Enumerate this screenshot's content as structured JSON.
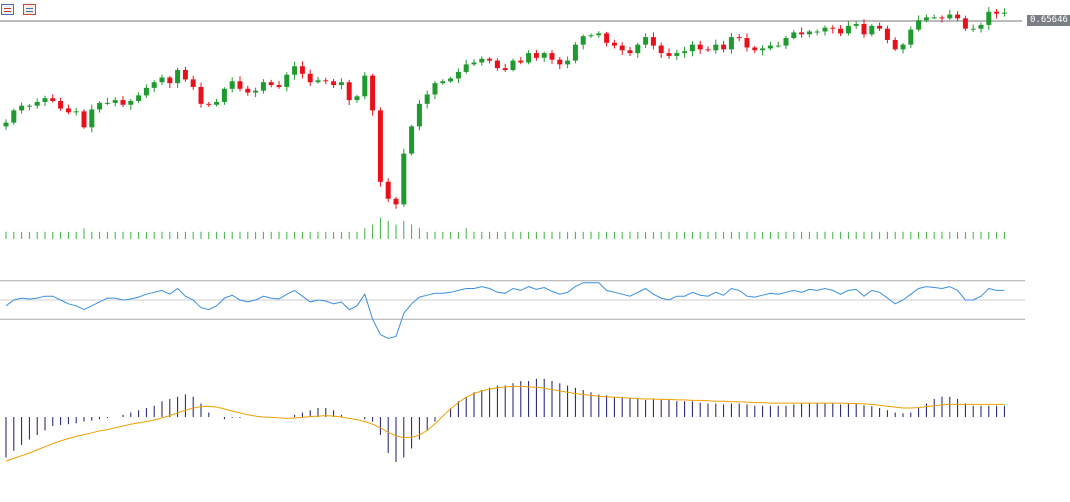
{
  "toolbar": {
    "icon_left": "properties-list-icon",
    "icon_right": "chart-type-icon"
  },
  "price_label": "0.65646",
  "colors": {
    "bull": "#1e9a2e",
    "bear": "#e8111b",
    "volume": "#3cb043",
    "rsi": "#3b8fe0",
    "macd_hist": "#1a1a6e",
    "signal": "#f0a000",
    "level_line": "#a9a9a9",
    "price_line": "#777777"
  },
  "chart_data": [
    {
      "type": "candlestick",
      "title": "",
      "last_price": 0.65646,
      "closes": [
        0.6448,
        0.6461,
        0.6466,
        0.6466,
        0.647,
        0.6474,
        0.6471,
        0.6463,
        0.6459,
        0.646,
        0.6443,
        0.6462,
        0.6469,
        0.6469,
        0.6472,
        0.6467,
        0.6471,
        0.6477,
        0.6485,
        0.6491,
        0.6496,
        0.649,
        0.6504,
        0.6494,
        0.6486,
        0.6468,
        0.6467,
        0.647,
        0.6484,
        0.6492,
        0.6484,
        0.648,
        0.6482,
        0.6491,
        0.6488,
        0.6486,
        0.6499,
        0.6508,
        0.65,
        0.6491,
        0.6493,
        0.6492,
        0.6488,
        0.6491,
        0.6472,
        0.6476,
        0.6498,
        0.6461,
        0.6385,
        0.6367,
        0.6361,
        0.6415,
        0.6444,
        0.6468,
        0.6478,
        0.649,
        0.6492,
        0.6495,
        0.6502,
        0.651,
        0.6512,
        0.6516,
        0.6514,
        0.6506,
        0.6504,
        0.6514,
        0.6512,
        0.6522,
        0.6517,
        0.6522,
        0.6515,
        0.651,
        0.6514,
        0.6531,
        0.654,
        0.6541,
        0.6543,
        0.6533,
        0.653,
        0.6525,
        0.6522,
        0.6531,
        0.6539,
        0.653,
        0.6522,
        0.6519,
        0.6522,
        0.6524,
        0.6531,
        0.6526,
        0.6525,
        0.6531,
        0.6526,
        0.6539,
        0.6538,
        0.6528,
        0.6525,
        0.6527,
        0.653,
        0.653,
        0.6538,
        0.6544,
        0.6542,
        0.6545,
        0.6545,
        0.6549,
        0.6548,
        0.6543,
        0.6551,
        0.6553,
        0.6542,
        0.6551,
        0.6548,
        0.6536,
        0.6526,
        0.6531,
        0.6547,
        0.6557,
        0.656,
        0.656,
        0.6559,
        0.6563,
        0.6559,
        0.6548,
        0.6548,
        0.6552,
        0.6566,
        0.6564,
        0.6565
      ],
      "volume": [
        2,
        2,
        2,
        2,
        2,
        2,
        2,
        2,
        2,
        2,
        3,
        2,
        2,
        2,
        2,
        2,
        2,
        2,
        2,
        2,
        2,
        2,
        2,
        2,
        2,
        2,
        2,
        2,
        2,
        2,
        2,
        2,
        2,
        2,
        2,
        2,
        2,
        2,
        2,
        2,
        2,
        2,
        2,
        2,
        2,
        2,
        3,
        4,
        6,
        5,
        4,
        5,
        4,
        3,
        2,
        2,
        2,
        2,
        2,
        3,
        2,
        2,
        2,
        2,
        2,
        2,
        2,
        2,
        2,
        2,
        2,
        2,
        2,
        2,
        2,
        2,
        2,
        2,
        2,
        2,
        2,
        2,
        2,
        2,
        2,
        2,
        2,
        2,
        2,
        2,
        2,
        2,
        2,
        2,
        2,
        2,
        2,
        2,
        2,
        2,
        2,
        2,
        2,
        2,
        2,
        2,
        2,
        2,
        2,
        2,
        2,
        2,
        2,
        2,
        2,
        2,
        2,
        2,
        2,
        2,
        2,
        2,
        2,
        2,
        2,
        2,
        2,
        2,
        2
      ]
    },
    {
      "type": "line",
      "series": [
        {
          "values": [
            44,
            50,
            52,
            51,
            52,
            54,
            54,
            50,
            46,
            44,
            40,
            44,
            48,
            52,
            52,
            50,
            51,
            53,
            56,
            58,
            60,
            56,
            62,
            54,
            50,
            42,
            40,
            44,
            52,
            55,
            50,
            48,
            50,
            54,
            52,
            51,
            56,
            60,
            54,
            48,
            50,
            49,
            46,
            48,
            40,
            44,
            56,
            30,
            14,
            10,
            12,
            36,
            46,
            53,
            55,
            57,
            57,
            58,
            60,
            62,
            62,
            64,
            62,
            58,
            57,
            62,
            60,
            64,
            61,
            63,
            59,
            56,
            58,
            64,
            68,
            68,
            68,
            60,
            58,
            56,
            54,
            58,
            62,
            56,
            52,
            50,
            54,
            54,
            58,
            55,
            54,
            58,
            55,
            62,
            60,
            54,
            53,
            55,
            57,
            56,
            58,
            60,
            58,
            61,
            60,
            62,
            60,
            56,
            60,
            61,
            54,
            60,
            58,
            52,
            46,
            50,
            56,
            62,
            64,
            63,
            62,
            64,
            60,
            50,
            50,
            54,
            62,
            60,
            60
          ]
        }
      ],
      "levels": [
        70,
        30
      ],
      "ylim": [
        0,
        100
      ]
    },
    {
      "type": "bar",
      "series": [
        {
          "values": [
            -0.0009,
            -0.00075,
            -0.00062,
            -0.0005,
            -0.0004,
            -0.0003,
            -0.0002,
            -0.00018,
            -0.00016,
            -0.00014,
            -0.0001,
            -8e-05,
            -5e-05,
            -2e-05,
            0.0,
            5e-05,
            0.0001,
            0.00015,
            0.0002,
            0.00025,
            0.00035,
            0.0004,
            0.00045,
            0.0005,
            0.00045,
            0.0003,
            0.0001,
            0.0,
            -5e-05,
            -2e-05,
            -2e-05,
            0.0,
            0.0,
            0.0,
            0.0,
            0.0,
            0.0,
            5e-05,
            0.0001,
            0.00015,
            0.0002,
            0.0002,
            0.00015,
            5e-05,
            0.0,
            0.0,
            -5e-05,
            -0.0001,
            -0.0004,
            -0.0008,
            -0.001,
            -0.0009,
            -0.0007,
            -0.0005,
            -0.0003,
            -0.0001,
            0.0,
            0.0002,
            0.00035,
            0.00045,
            0.00055,
            0.0006,
            0.00065,
            0.0007,
            0.0007,
            0.00075,
            0.0008,
            0.0008,
            0.00085,
            0.00085,
            0.0008,
            0.00075,
            0.0007,
            0.00065,
            0.0006,
            0.00055,
            0.0005,
            0.00048,
            0.00045,
            0.00045,
            0.00042,
            0.0004,
            0.00038,
            0.0004,
            0.0004,
            0.00038,
            0.00035,
            0.00035,
            0.00035,
            0.00032,
            0.0003,
            0.0003,
            0.00028,
            0.0003,
            0.0003,
            0.00028,
            0.00025,
            0.00025,
            0.00025,
            0.00025,
            0.00025,
            0.00028,
            0.0003,
            0.0003,
            0.0003,
            0.0003,
            0.0003,
            0.00028,
            0.0003,
            0.0003,
            0.00026,
            0.00024,
            0.0002,
            0.00015,
            0.0001,
            8e-05,
            0.0001,
            0.0002,
            0.0003,
            0.0004,
            0.00045,
            0.00045,
            0.0004,
            0.0003,
            0.00025,
            0.00025,
            0.00025,
            0.00025,
            0.00025
          ]
        },
        {
          "values": [
            -0.00098,
            -0.00092,
            -0.00086,
            -0.0008,
            -0.00073,
            -0.00066,
            -0.00059,
            -0.00053,
            -0.00048,
            -0.00043,
            -0.00039,
            -0.00035,
            -0.00031,
            -0.00028,
            -0.00024,
            -0.0002,
            -0.00016,
            -0.00013,
            -0.0001,
            -7e-05,
            -2e-05,
            3e-05,
            9e-05,
            0.00015,
            0.0002,
            0.00023,
            0.00024,
            0.00022,
            0.00018,
            0.00013,
            9e-05,
            5e-05,
            2e-05,
            0.0,
            -1e-05,
            -2e-05,
            -3e-05,
            -2e-05,
            -1e-05,
            1e-05,
            2e-05,
            3e-05,
            2e-05,
            0.0,
            -3e-05,
            -6e-05,
            -0.0001,
            -0.00016,
            -0.00024,
            -0.00034,
            -0.00042,
            -0.00046,
            -0.00045,
            -0.0004,
            -0.0003,
            -0.00015,
            2e-05,
            0.00018,
            0.00032,
            0.00044,
            0.00052,
            0.00058,
            0.00062,
            0.00065,
            0.00067,
            0.00068,
            0.00068,
            0.00067,
            0.00066,
            0.00064,
            0.00061,
            0.00058,
            0.00055,
            0.00052,
            0.0005,
            0.00048,
            0.00046,
            0.00045,
            0.00044,
            0.00043,
            0.00042,
            0.00041,
            0.0004,
            0.0004,
            0.00039,
            0.00039,
            0.00038,
            0.00038,
            0.00037,
            0.00037,
            0.00036,
            0.00035,
            0.00035,
            0.00034,
            0.00034,
            0.00033,
            0.00032,
            0.00032,
            0.00031,
            0.00031,
            0.00031,
            0.00031,
            0.00031,
            0.00031,
            0.00031,
            0.00031,
            0.00031,
            0.00031,
            0.0003,
            0.0003,
            0.00029,
            0.00028,
            0.00026,
            0.00024,
            0.00022,
            0.0002,
            0.0002,
            0.00021,
            0.00023,
            0.00025,
            0.00027,
            0.00028,
            0.00028,
            0.00028,
            0.00028,
            0.00028,
            0.00028,
            0.00028,
            0.00028
          ]
        }
      ]
    }
  ]
}
